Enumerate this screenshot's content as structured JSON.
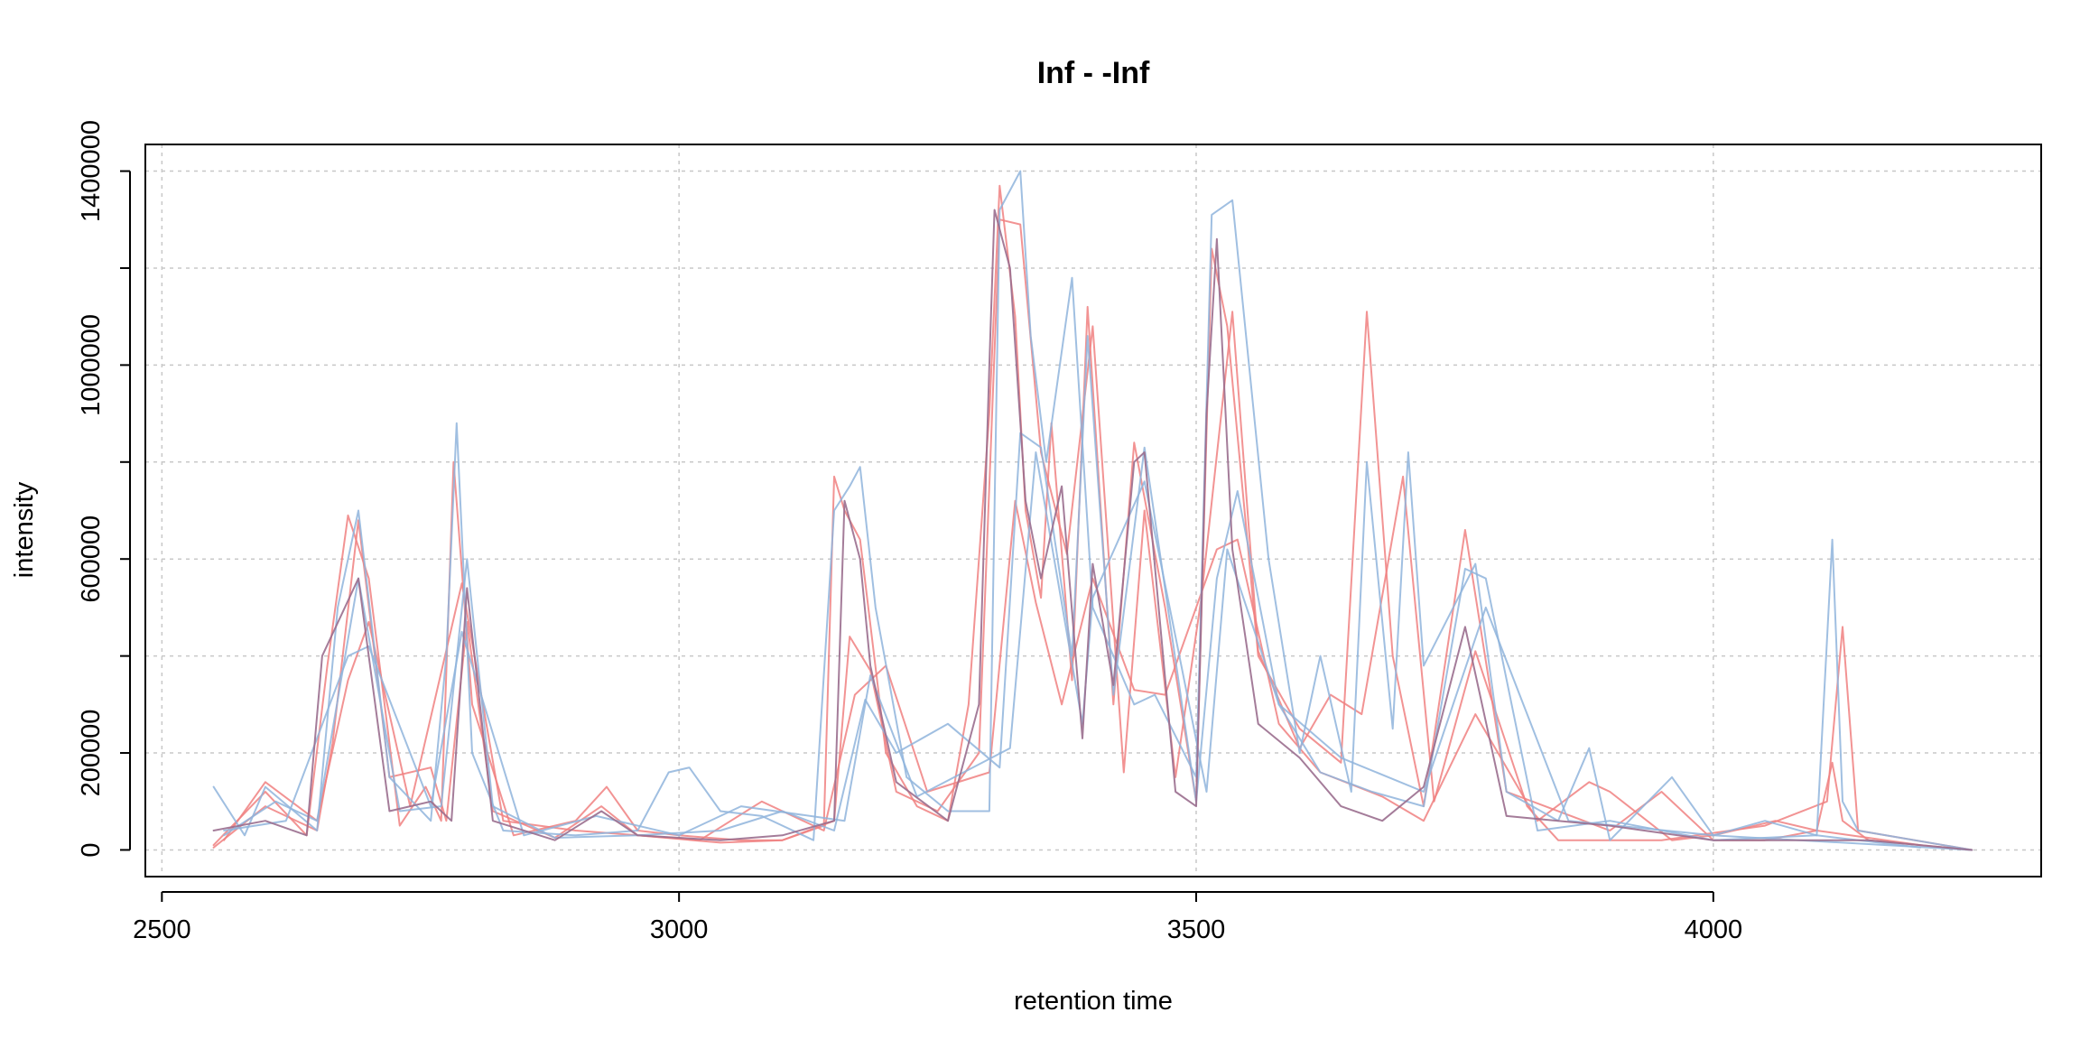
{
  "chart_data": {
    "type": "line",
    "title": "Inf - -Inf",
    "xlabel": "retention time",
    "ylabel": "intensity",
    "xlim": [
      2484,
      4317
    ],
    "ylim": [
      -55000,
      1455000
    ],
    "x_ticks": [
      2500,
      3000,
      3500,
      4000
    ],
    "x_tick_labels": [
      "2500",
      "3000",
      "3500",
      "4000"
    ],
    "y_ticks": [
      0,
      200000,
      400000,
      600000,
      800000,
      1000000,
      1200000,
      1400000
    ],
    "y_tick_labels": [
      "0",
      "200000",
      "",
      "600000",
      "",
      "1000000",
      "",
      "1400000"
    ],
    "grid": true,
    "legend": "none",
    "colors": {
      "red": "#f08080",
      "blue": "#8fb4dc",
      "purple": "#9a6e8e"
    },
    "series": [
      {
        "color": "red",
        "x": [
          2550,
          2600,
          2640,
          2660,
          2680,
          2700,
          2730,
          2755,
          2770,
          2782,
          2800,
          2840,
          2900,
          2930,
          2960,
          3000,
          3060,
          3100,
          3140,
          3150,
          3160,
          3175,
          3200,
          3230,
          3260,
          3280,
          3300,
          3310,
          3325,
          3335,
          3350,
          3360,
          3380,
          3395,
          3420,
          3440,
          3470,
          3500,
          3515,
          3530,
          3560,
          3600,
          3640,
          3665,
          3690,
          3720,
          3760,
          3800,
          3900,
          3950,
          4000,
          4050,
          4100,
          4115,
          4125,
          4150,
          4250
        ],
        "y": [
          10000,
          120000,
          30000,
          380000,
          690000,
          560000,
          50000,
          130000,
          60000,
          800000,
          300000,
          30000,
          60000,
          130000,
          40000,
          30000,
          20000,
          20000,
          50000,
          770000,
          700000,
          640000,
          200000,
          90000,
          60000,
          300000,
          900000,
          1370000,
          1100000,
          700000,
          520000,
          880000,
          350000,
          1120000,
          300000,
          840000,
          500000,
          100000,
          1240000,
          1080000,
          400000,
          250000,
          180000,
          1110000,
          400000,
          90000,
          660000,
          120000,
          40000,
          120000,
          20000,
          20000,
          40000,
          180000,
          60000,
          20000,
          0
        ]
      },
      {
        "color": "red",
        "x": [
          2550,
          2600,
          2650,
          2665,
          2690,
          2720,
          2760,
          2775,
          2795,
          2820,
          2880,
          2925,
          2960,
          3040,
          3100,
          3150,
          3165,
          3185,
          3210,
          3250,
          3290,
          3310,
          3330,
          3350,
          3375,
          3400,
          3430,
          3450,
          3480,
          3505,
          3535,
          3560,
          3600,
          3630,
          3660,
          3700,
          3730,
          3770,
          3820,
          3850,
          3950,
          4050,
          4110,
          4125,
          4140,
          4250
        ],
        "y": [
          5000,
          90000,
          40000,
          220000,
          680000,
          150000,
          170000,
          60000,
          470000,
          80000,
          25000,
          90000,
          30000,
          15000,
          20000,
          60000,
          440000,
          370000,
          120000,
          80000,
          200000,
          1300000,
          1290000,
          820000,
          610000,
          1080000,
          160000,
          700000,
          150000,
          520000,
          1110000,
          410000,
          210000,
          320000,
          280000,
          770000,
          100000,
          410000,
          90000,
          20000,
          20000,
          50000,
          100000,
          460000,
          40000,
          0
        ]
      },
      {
        "color": "red",
        "x": [
          2560,
          2600,
          2650,
          2680,
          2700,
          2740,
          2790,
          2830,
          2900,
          2960,
          3020,
          3080,
          3140,
          3170,
          3200,
          3240,
          3300,
          3325,
          3345,
          3370,
          3400,
          3440,
          3470,
          3520,
          3540,
          3580,
          3620,
          3680,
          3720,
          3770,
          3830,
          3880,
          3900,
          3960,
          4000,
          4060,
          4100,
          4200
        ],
        "y": [
          20000,
          140000,
          60000,
          350000,
          470000,
          90000,
          550000,
          60000,
          40000,
          30000,
          20000,
          100000,
          40000,
          320000,
          380000,
          120000,
          160000,
          720000,
          510000,
          300000,
          560000,
          330000,
          320000,
          620000,
          640000,
          260000,
          160000,
          110000,
          60000,
          280000,
          60000,
          140000,
          120000,
          20000,
          30000,
          60000,
          40000,
          10000
        ]
      },
      {
        "color": "blue",
        "x": [
          2550,
          2580,
          2600,
          2650,
          2670,
          2690,
          2720,
          2760,
          2775,
          2785,
          2800,
          2830,
          2900,
          2960,
          2990,
          3010,
          3040,
          3080,
          3130,
          3150,
          3165,
          3175,
          3190,
          3220,
          3260,
          3300,
          3310,
          3330,
          3340,
          3355,
          3380,
          3400,
          3440,
          3460,
          3500,
          3515,
          3535,
          3570,
          3600,
          3620,
          3650,
          3665,
          3690,
          3705,
          3720,
          3770,
          3800,
          3850,
          3880,
          3900,
          3960,
          4000,
          4050,
          4100,
          4115,
          4125,
          4140,
          4250
        ],
        "y": [
          130000,
          30000,
          130000,
          40000,
          500000,
          700000,
          150000,
          60000,
          400000,
          880000,
          200000,
          40000,
          30000,
          40000,
          160000,
          170000,
          80000,
          70000,
          20000,
          700000,
          750000,
          790000,
          500000,
          150000,
          80000,
          80000,
          1320000,
          1400000,
          1060000,
          800000,
          1180000,
          500000,
          300000,
          320000,
          150000,
          1310000,
          1340000,
          600000,
          200000,
          400000,
          120000,
          800000,
          250000,
          820000,
          380000,
          590000,
          120000,
          60000,
          210000,
          20000,
          150000,
          30000,
          60000,
          30000,
          640000,
          100000,
          40000,
          0
        ]
      },
      {
        "color": "blue",
        "x": [
          2560,
          2610,
          2650,
          2690,
          2730,
          2770,
          2795,
          2820,
          2880,
          2960,
          3040,
          3100,
          3150,
          3180,
          3210,
          3260,
          3310,
          3330,
          3350,
          3380,
          3395,
          3420,
          3450,
          3500,
          3520,
          3540,
          3580,
          3620,
          3670,
          3720,
          3760,
          3780,
          3830,
          3900,
          4000,
          4100,
          4200
        ],
        "y": [
          30000,
          100000,
          60000,
          560000,
          80000,
          90000,
          600000,
          90000,
          25000,
          30000,
          40000,
          80000,
          40000,
          310000,
          200000,
          260000,
          170000,
          860000,
          830000,
          400000,
          1060000,
          320000,
          830000,
          100000,
          560000,
          740000,
          300000,
          160000,
          120000,
          90000,
          580000,
          560000,
          40000,
          60000,
          20000,
          30000,
          5000
        ]
      },
      {
        "color": "blue",
        "x": [
          2560,
          2620,
          2680,
          2700,
          2760,
          2790,
          2850,
          2920,
          3000,
          3060,
          3160,
          3185,
          3230,
          3320,
          3345,
          3390,
          3400,
          3450,
          3510,
          3530,
          3580,
          3640,
          3720,
          3780,
          3860,
          4000,
          4250
        ],
        "y": [
          40000,
          60000,
          400000,
          420000,
          90000,
          450000,
          30000,
          70000,
          30000,
          90000,
          60000,
          360000,
          110000,
          210000,
          820000,
          260000,
          520000,
          760000,
          120000,
          620000,
          300000,
          190000,
          120000,
          500000,
          60000,
          30000,
          0
        ]
      },
      {
        "color": "purple",
        "x": [
          2550,
          2600,
          2640,
          2655,
          2690,
          2720,
          2760,
          2780,
          2795,
          2820,
          2880,
          2925,
          2960,
          3040,
          3100,
          3150,
          3160,
          3175,
          3185,
          3210,
          3260,
          3290,
          3300,
          3305,
          3320,
          3335,
          3350,
          3370,
          3390,
          3400,
          3420,
          3440,
          3450,
          3480,
          3500,
          3510,
          3520,
          3535,
          3560,
          3600,
          3640,
          3680,
          3720,
          3760,
          3800,
          3900,
          4000,
          4100,
          4150,
          4250
        ],
        "y": [
          40000,
          60000,
          30000,
          400000,
          560000,
          80000,
          100000,
          60000,
          540000,
          60000,
          20000,
          80000,
          30000,
          20000,
          30000,
          60000,
          720000,
          600000,
          380000,
          140000,
          60000,
          300000,
          1000000,
          1320000,
          1200000,
          720000,
          560000,
          750000,
          230000,
          590000,
          340000,
          800000,
          820000,
          120000,
          90000,
          900000,
          1260000,
          620000,
          260000,
          190000,
          90000,
          60000,
          130000,
          460000,
          70000,
          50000,
          20000,
          20000,
          20000,
          0
        ]
      }
    ]
  }
}
